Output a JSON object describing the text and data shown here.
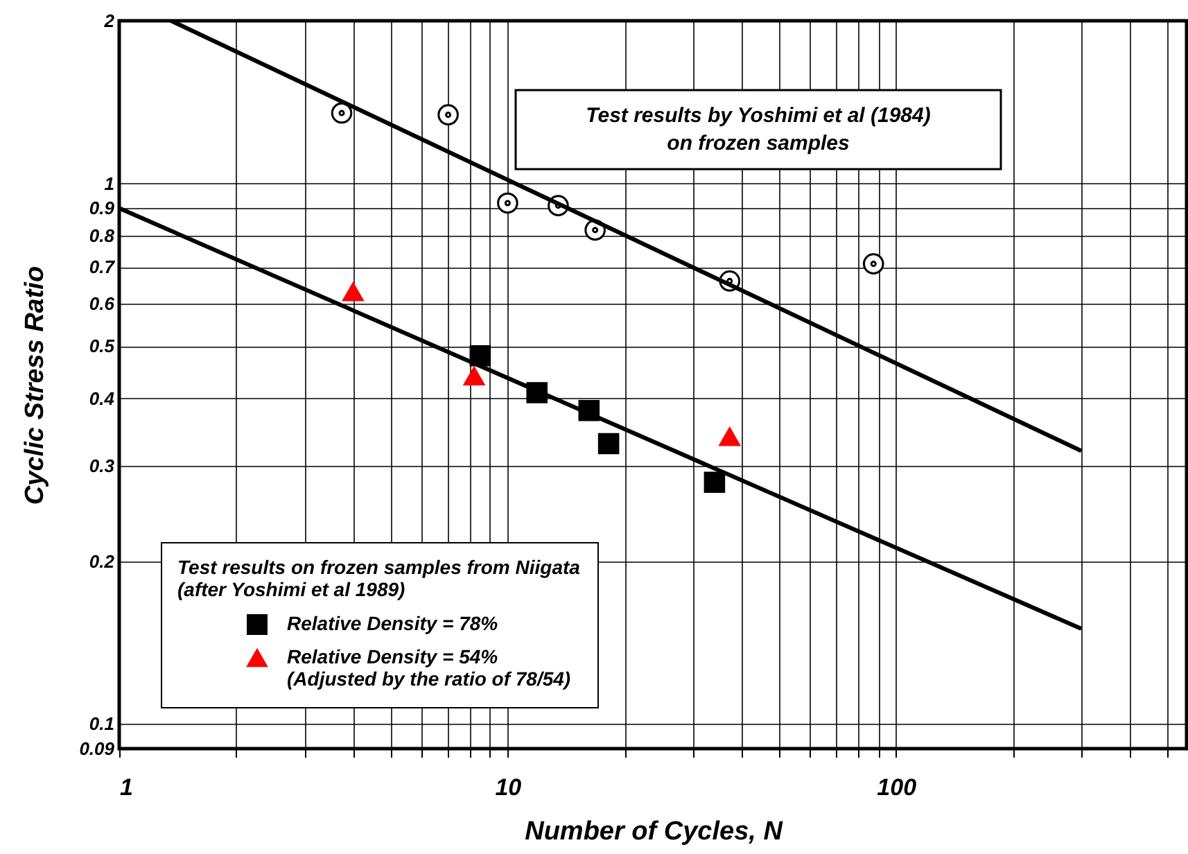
{
  "chart_data": {
    "type": "scatter",
    "xlabel": "Number of Cycles, N",
    "ylabel": "Cyclic Stress Ratio",
    "legend_title": "Test results on frozen samples from Niigata\n(after Yoshimi et al 1989)",
    "annotations": [
      "Test results by Yoshimi et al (1984)\non frozen samples"
    ],
    "log": "xy",
    "grid": true,
    "legend": "bottom left",
    "xlim": [
      1,
      560
    ],
    "ylim": [
      0.09,
      2
    ],
    "xticks": [
      1,
      {
        "value": 2,
        "label": null
      },
      {
        "value": 3,
        "label": null
      },
      {
        "value": 4,
        "label": null
      },
      {
        "value": 5,
        "label": null
      },
      {
        "value": 6,
        "label": null
      },
      {
        "value": 7,
        "label": null
      },
      {
        "value": 8,
        "label": null
      },
      {
        "value": 9,
        "label": null
      },
      10,
      {
        "value": 20,
        "label": null
      },
      {
        "value": 30,
        "label": null
      },
      {
        "value": 40,
        "label": null
      },
      {
        "value": 50,
        "label": null
      },
      {
        "value": 60,
        "label": null
      },
      {
        "value": 70,
        "label": null
      },
      {
        "value": 80,
        "label": null
      },
      {
        "value": 90,
        "label": null
      },
      100,
      {
        "value": 200,
        "label": null
      },
      {
        "value": 300,
        "label": null
      },
      {
        "value": 400,
        "label": null
      },
      {
        "value": 500,
        "label": null
      }
    ],
    "yticks": [
      0.09,
      0.1,
      0.2,
      0.3,
      0.4,
      0.5,
      0.6,
      0.7,
      0.8,
      0.9,
      1,
      2
    ],
    "series": [
      {
        "color": "#000000",
        "marker": "circle",
        "x": [
          3.74,
          7.03,
          10.0,
          13.5,
          16.8,
          37.3,
          87.5
        ],
        "values": [
          1.35,
          1.34,
          0.92,
          0.91,
          0.82,
          0.66,
          0.71
        ]
      },
      {
        "name": "Relative Density = 78%",
        "color": "#000000",
        "marker": "square",
        "x": [
          8.5,
          11.9,
          16.2,
          18.2,
          34.1
        ],
        "values": [
          0.48,
          0.41,
          0.38,
          0.33,
          0.28
        ]
      },
      {
        "name": "Relative Density = 54%\n(Adjusted by the ratio of 78/54)",
        "color": "#ff0000",
        "marker": "triangle",
        "x": [
          4.0,
          8.2,
          37.3
        ],
        "values": [
          0.63,
          0.44,
          0.34
        ]
      },
      {
        "type": "line",
        "color": "#000000",
        "x": [
          1.36,
          300
        ],
        "values": [
          2,
          0.32
        ]
      },
      {
        "type": "line",
        "color": "#000000",
        "x": [
          1,
          300
        ],
        "values": [
          0.9,
          0.15
        ]
      }
    ]
  }
}
